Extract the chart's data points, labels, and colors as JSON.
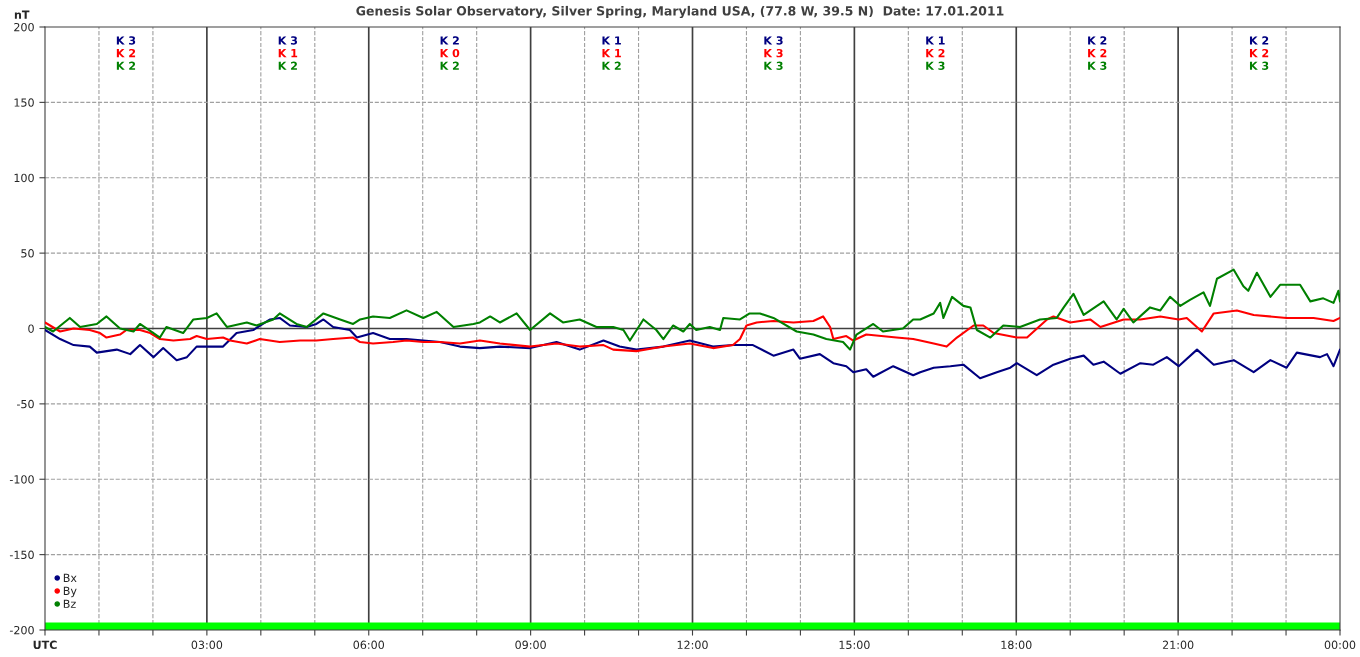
{
  "chart_data": {
    "type": "line",
    "title": "Genesis Solar Observatory, Silver Spring, Maryland USA, (77.8 W, 39.5 N)  Date: 17.01.2011",
    "ylabel": "nT",
    "xlim": [
      0,
      24
    ],
    "ylim": [
      -200,
      200
    ],
    "xticks": [
      {
        "value": 0,
        "label": "UTC"
      },
      {
        "value": 1,
        "label": null
      },
      {
        "value": 2,
        "label": null
      },
      {
        "value": 3,
        "label": "03:00"
      },
      {
        "value": 4,
        "label": null
      },
      {
        "value": 5,
        "label": null
      },
      {
        "value": 6,
        "label": "06:00"
      },
      {
        "value": 7,
        "label": null
      },
      {
        "value": 8,
        "label": null
      },
      {
        "value": 9,
        "label": "09:00"
      },
      {
        "value": 10,
        "label": null
      },
      {
        "value": 11,
        "label": null
      },
      {
        "value": 12,
        "label": "12:00"
      },
      {
        "value": 13,
        "label": null
      },
      {
        "value": 14,
        "label": null
      },
      {
        "value": 15,
        "label": "15:00"
      },
      {
        "value": 16,
        "label": null
      },
      {
        "value": 17,
        "label": null
      },
      {
        "value": 18,
        "label": "18:00"
      },
      {
        "value": 19,
        "label": null
      },
      {
        "value": 20,
        "label": null
      },
      {
        "value": 21,
        "label": "21:00"
      },
      {
        "value": 22,
        "label": null
      },
      {
        "value": 23,
        "label": null
      },
      {
        "value": 24,
        "label": "00:00"
      }
    ],
    "yticks": [
      -200,
      -150,
      -100,
      -50,
      0,
      50,
      100,
      150,
      200
    ],
    "grid": true,
    "legend": "bottom left",
    "line_style": "solid",
    "series": [
      {
        "name": "Bx",
        "color": "#000080",
        "x": [
          0,
          0.28,
          0.53,
          0.83,
          0.96,
          1.33,
          1.58,
          1.76,
          2.01,
          2.19,
          2.44,
          2.63,
          2.81,
          3.06,
          3.3,
          3.55,
          3.86,
          4.17,
          4.35,
          4.54,
          4.85,
          5.03,
          5.16,
          5.34,
          5.65,
          5.78,
          6.08,
          6.39,
          6.7,
          7.01,
          7.32,
          7.69,
          8.06,
          8.43,
          8.99,
          9.48,
          9.91,
          10.35,
          10.65,
          10.96,
          11.46,
          11.95,
          12.38,
          12.75,
          13.12,
          13.5,
          13.87,
          13.99,
          14.36,
          14.61,
          14.85,
          14.98,
          15.22,
          15.35,
          15.72,
          16.09,
          16.22,
          16.47,
          16.78,
          17.02,
          17.33,
          17.64,
          17.89,
          18.01,
          18.38,
          18.69,
          19.0,
          19.25,
          19.43,
          19.62,
          19.93,
          20.3,
          20.54,
          20.79,
          21.01,
          21.35,
          21.66,
          22.03,
          22.4,
          22.71,
          23.01,
          23.2,
          23.63,
          23.76,
          23.88,
          24.0
        ],
        "values": [
          -1,
          -7,
          -11,
          -12,
          -16,
          -14,
          -17,
          -11,
          -19,
          -13,
          -21,
          -19,
          -12,
          -12,
          -12,
          -3,
          -1,
          6,
          7,
          2,
          1,
          3,
          6,
          1,
          -1,
          -6,
          -3,
          -7,
          -7,
          -8,
          -9,
          -12,
          -13,
          -12,
          -13,
          -9,
          -14,
          -8,
          -12,
          -14,
          -12,
          -8,
          -12,
          -11,
          -11,
          -18,
          -14,
          -20,
          -17,
          -23,
          -25,
          -29,
          -27,
          -32,
          -25,
          -31,
          -29,
          -26,
          -25,
          -24,
          -33,
          -29,
          -26,
          -23,
          -31,
          -24,
          -20,
          -18,
          -24,
          -22,
          -30,
          -23,
          -24,
          -19,
          -25,
          -14,
          -24,
          -21,
          -29,
          -21,
          -26,
          -16,
          -19,
          -17,
          -25,
          -14
        ]
      },
      {
        "name": "By",
        "color": "#ff0000",
        "x": [
          0,
          0.28,
          0.53,
          0.83,
          1.02,
          1.14,
          1.39,
          1.51,
          1.76,
          1.95,
          2.13,
          2.38,
          2.69,
          2.81,
          3.0,
          3.3,
          3.43,
          3.74,
          3.98,
          4.35,
          4.73,
          5.03,
          5.34,
          5.71,
          5.84,
          6.08,
          6.45,
          6.7,
          7.01,
          7.32,
          7.69,
          8.06,
          8.43,
          8.99,
          9.48,
          9.91,
          10.35,
          10.53,
          10.96,
          11.46,
          11.95,
          12.38,
          12.75,
          12.88,
          13.0,
          13.19,
          13.5,
          13.87,
          14.24,
          14.42,
          14.55,
          14.61,
          14.85,
          14.98,
          15.22,
          15.78,
          16.09,
          16.22,
          16.47,
          16.71,
          16.9,
          17.21,
          17.39,
          17.58,
          18.01,
          18.2,
          18.57,
          18.69,
          19.0,
          19.37,
          19.56,
          19.99,
          20.3,
          20.67,
          21.01,
          21.16,
          21.44,
          21.66,
          22.09,
          22.4,
          23.01,
          23.51,
          23.88,
          24.0
        ],
        "values": [
          4,
          -2,
          0,
          -1,
          -3,
          -6,
          -4,
          -1,
          -1,
          -3,
          -7,
          -8,
          -7,
          -5,
          -7,
          -6,
          -8,
          -10,
          -7,
          -9,
          -8,
          -8,
          -7,
          -6,
          -9,
          -10,
          -9,
          -8,
          -9,
          -9,
          -10,
          -8,
          -10,
          -12,
          -10,
          -12,
          -11,
          -14,
          -15,
          -12,
          -10,
          -13,
          -11,
          -7,
          2,
          4,
          5,
          4,
          5,
          8,
          1,
          -7,
          -5,
          -8,
          -4,
          -6,
          -7,
          -8,
          -10,
          -12,
          -6,
          2,
          2,
          -3,
          -6,
          -6,
          6,
          8,
          4,
          6,
          1,
          6,
          6,
          8,
          6,
          7,
          -2,
          10,
          12,
          9,
          7,
          7,
          5,
          7
        ]
      },
      {
        "name": "Bz",
        "color": "#008000",
        "x": [
          0,
          0.15,
          0.46,
          0.65,
          0.96,
          1.14,
          1.39,
          1.64,
          1.76,
          2.01,
          2.13,
          2.25,
          2.56,
          2.75,
          3.0,
          3.18,
          3.37,
          3.74,
          3.92,
          4.23,
          4.35,
          4.66,
          4.85,
          5.16,
          5.47,
          5.71,
          5.84,
          6.08,
          6.39,
          6.7,
          7.01,
          7.26,
          7.57,
          7.94,
          8.06,
          8.25,
          8.43,
          8.74,
          8.99,
          9.36,
          9.6,
          9.91,
          10.22,
          10.53,
          10.72,
          10.84,
          11.09,
          11.33,
          11.46,
          11.64,
          11.83,
          11.95,
          12.07,
          12.32,
          12.51,
          12.57,
          12.88,
          13.06,
          13.25,
          13.5,
          13.93,
          14.24,
          14.48,
          14.79,
          14.92,
          15.04,
          15.35,
          15.53,
          15.9,
          16.09,
          16.22,
          16.47,
          16.59,
          16.65,
          16.81,
          17.02,
          17.15,
          17.27,
          17.52,
          17.76,
          18.07,
          18.44,
          18.75,
          18.88,
          19.06,
          19.25,
          19.62,
          19.86,
          19.99,
          20.17,
          20.48,
          20.67,
          20.85,
          21.04,
          21.22,
          21.47,
          21.59,
          21.72,
          22.03,
          22.21,
          22.3,
          22.46,
          22.71,
          22.89,
          23.26,
          23.45,
          23.69,
          23.88,
          23.97,
          24.0
        ],
        "values": [
          1,
          -2,
          7,
          1,
          3,
          8,
          0,
          -2,
          3,
          -3,
          -6,
          1,
          -3,
          6,
          7,
          10,
          1,
          4,
          2,
          6,
          10,
          3,
          1,
          10,
          6,
          3,
          6,
          8,
          7,
          12,
          7,
          11,
          1,
          3,
          4,
          8,
          4,
          10,
          -1,
          10,
          4,
          6,
          1,
          1,
          -1,
          -8,
          6,
          -1,
          -7,
          2,
          -2,
          3,
          -1,
          1,
          -1,
          7,
          6,
          10,
          10,
          7,
          -2,
          -4,
          -7,
          -9,
          -14,
          -4,
          3,
          -2,
          0,
          6,
          6,
          10,
          17,
          7,
          21,
          15,
          14,
          -1,
          -6,
          2,
          1,
          6,
          7,
          14,
          23,
          9,
          18,
          6,
          13,
          4,
          14,
          12,
          21,
          15,
          19,
          24,
          15,
          33,
          39,
          28,
          25,
          37,
          21,
          29,
          29,
          18,
          20,
          17,
          25,
          18
        ]
      }
    ],
    "bands": [
      {
        "axis": "y",
        "from": -200,
        "to": -195,
        "color": "#00ff00"
      }
    ],
    "annotations": [
      "K 3",
      "K 2",
      "K 2",
      "K 3",
      "K 1",
      "K 2",
      "K 2",
      "K 0",
      "K 2",
      "K 1",
      "K 1",
      "K 2",
      "K 3",
      "K 3",
      "K 3",
      "K 1",
      "K 2",
      "K 3",
      "K 2",
      "K 2",
      "K 3",
      "K 2",
      "K 2",
      "K 3"
    ]
  }
}
